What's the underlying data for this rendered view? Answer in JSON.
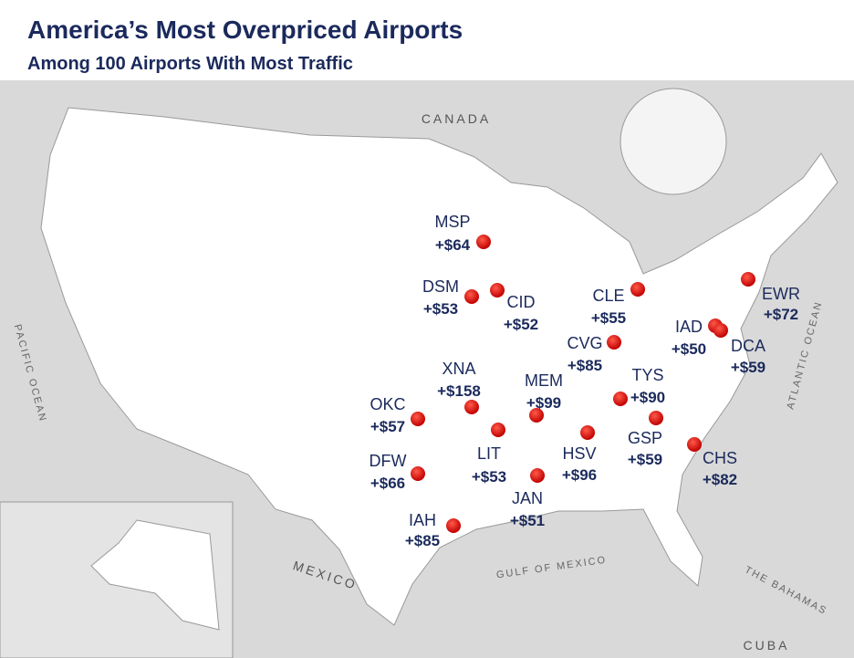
{
  "header": {
    "title": "America’s Most Overpriced Airports",
    "subtitle": "Among 100 Airports With Most Traffic"
  },
  "map_labels": [
    "CANADA",
    "MEXICO",
    "PACIFIC OCEAN",
    "ATLANTIC OCEAN",
    "GULF OF MEXICO",
    "THE BAHAMAS",
    "CUBA"
  ],
  "airports": [
    {
      "code": "MSP",
      "premium": "+$64"
    },
    {
      "code": "DSM",
      "premium": "+$53"
    },
    {
      "code": "CID",
      "premium": "+$52"
    },
    {
      "code": "CLE",
      "premium": "+$55"
    },
    {
      "code": "EWR",
      "premium": "+$72"
    },
    {
      "code": "IAD",
      "premium": "+$50"
    },
    {
      "code": "DCA",
      "premium": "+$59"
    },
    {
      "code": "CVG",
      "premium": "+$85"
    },
    {
      "code": "XNA",
      "premium": "+$158"
    },
    {
      "code": "MEM",
      "premium": "+$99"
    },
    {
      "code": "TYS",
      "premium": "+$90"
    },
    {
      "code": "OKC",
      "premium": "+$57"
    },
    {
      "code": "LIT",
      "premium": "+$53"
    },
    {
      "code": "HSV",
      "premium": "+$96"
    },
    {
      "code": "GSP",
      "premium": "+$59"
    },
    {
      "code": "CHS",
      "premium": "+$82"
    },
    {
      "code": "DFW",
      "premium": "+$66"
    },
    {
      "code": "JAN",
      "premium": "+$51"
    },
    {
      "code": "IAH",
      "premium": "+$85"
    }
  ]
}
